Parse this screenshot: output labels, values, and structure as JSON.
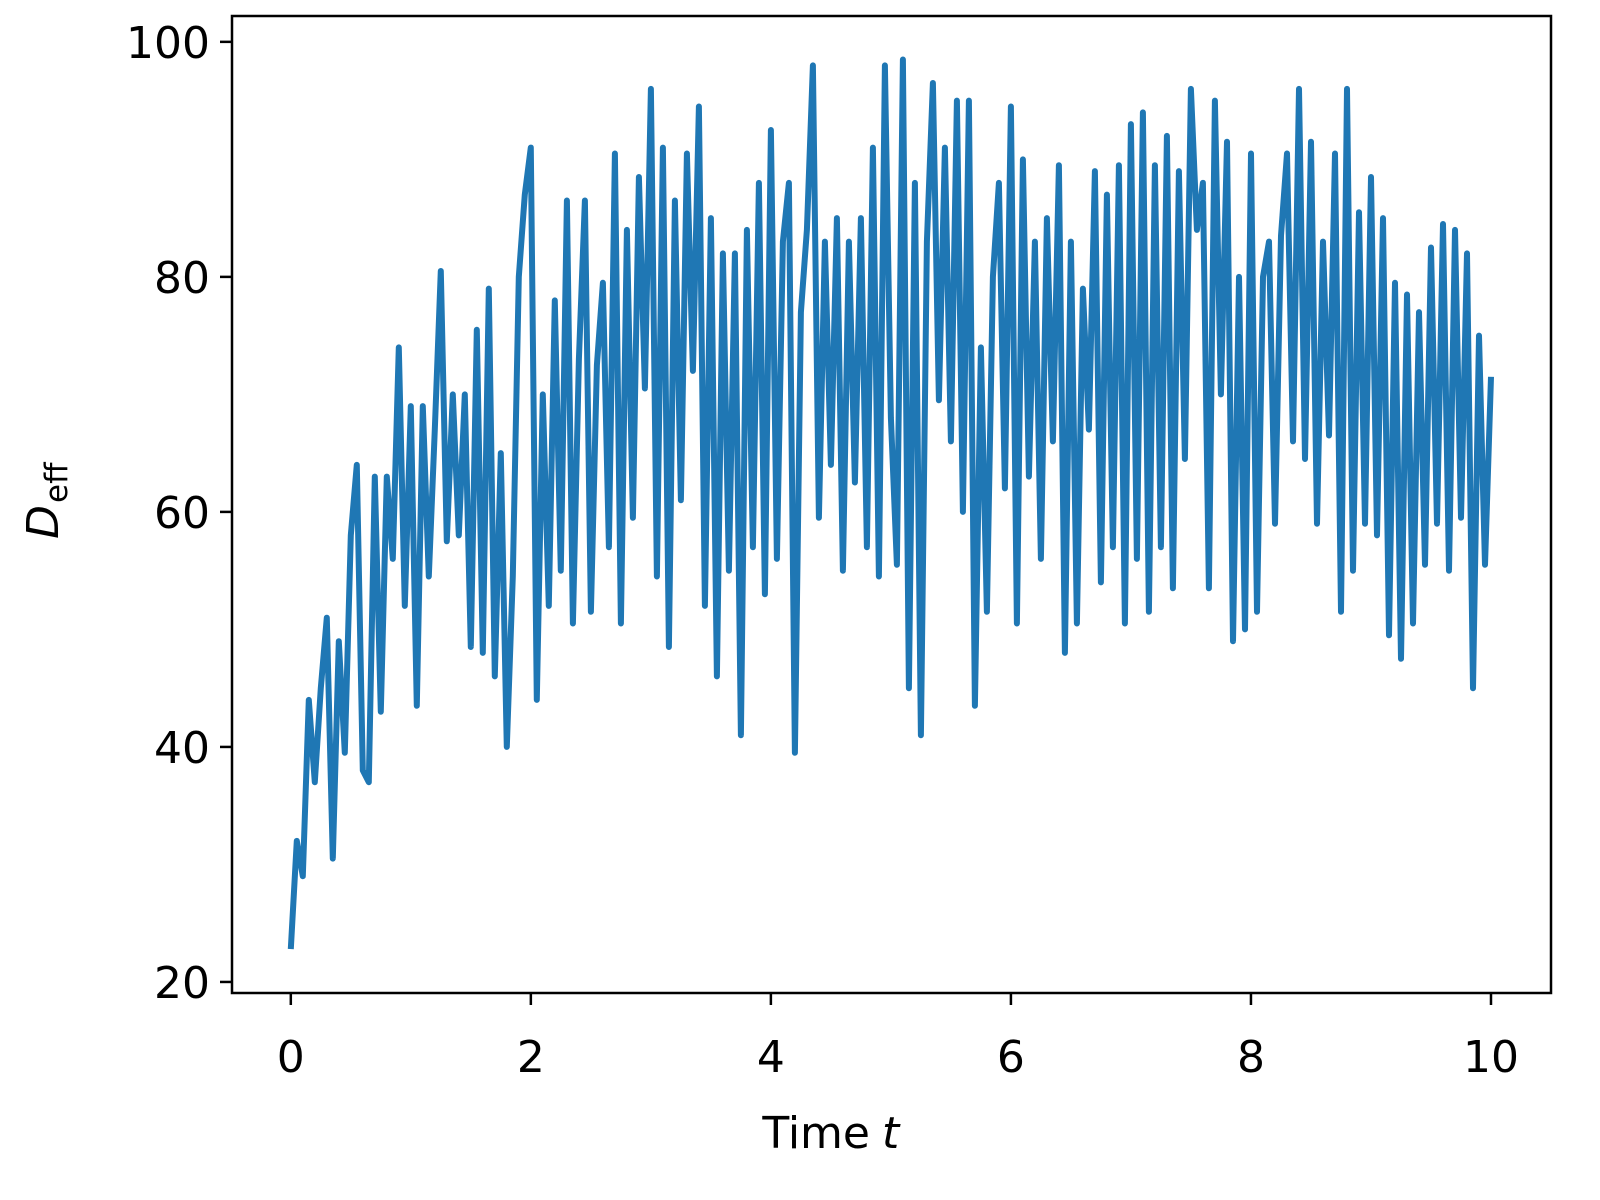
{
  "chart_data": {
    "type": "line",
    "xlabel": [
      "Time",
      "t"
    ],
    "ylabel": [
      "D",
      "eff"
    ],
    "x": [
      0,
      0.05,
      0.1,
      0.15,
      0.2,
      0.25,
      0.3,
      0.35,
      0.4,
      0.45,
      0.5,
      0.55,
      0.6,
      0.65,
      0.7,
      0.75,
      0.8,
      0.85,
      0.9,
      0.95,
      1,
      1.05,
      1.1,
      1.15,
      1.2,
      1.25,
      1.3,
      1.35,
      1.4,
      1.45,
      1.5,
      1.55,
      1.6,
      1.65,
      1.7,
      1.75,
      1.8,
      1.85,
      1.9,
      1.95,
      2,
      2.05,
      2.1,
      2.15,
      2.2,
      2.25,
      2.3,
      2.35,
      2.4,
      2.45,
      2.5,
      2.55,
      2.6,
      2.65,
      2.7,
      2.75,
      2.8,
      2.85,
      2.9,
      2.95,
      3,
      3.05,
      3.1,
      3.15,
      3.2,
      3.25,
      3.3,
      3.35,
      3.4,
      3.45,
      3.5,
      3.55,
      3.6,
      3.65,
      3.7,
      3.75,
      3.8,
      3.85,
      3.9,
      3.95,
      4,
      4.05,
      4.1,
      4.15,
      4.2,
      4.25,
      4.3,
      4.35,
      4.4,
      4.45,
      4.5,
      4.55,
      4.6,
      4.65,
      4.7,
      4.75,
      4.8,
      4.85,
      4.9,
      4.95,
      5,
      5.05,
      5.1,
      5.15,
      5.2,
      5.25,
      5.3,
      5.35,
      5.4,
      5.45,
      5.5,
      5.55,
      5.6,
      5.65,
      5.7,
      5.75,
      5.8,
      5.85,
      5.9,
      5.95,
      6,
      6.05,
      6.1,
      6.15,
      6.2,
      6.25,
      6.3,
      6.35,
      6.4,
      6.45,
      6.5,
      6.55,
      6.6,
      6.65,
      6.7,
      6.75,
      6.8,
      6.85,
      6.9,
      6.95,
      7,
      7.05,
      7.1,
      7.15,
      7.2,
      7.25,
      7.3,
      7.35,
      7.4,
      7.45,
      7.5,
      7.55,
      7.6,
      7.65,
      7.7,
      7.75,
      7.8,
      7.85,
      7.9,
      7.95,
      8,
      8.05,
      8.1,
      8.15,
      8.2,
      8.25,
      8.3,
      8.35,
      8.4,
      8.45,
      8.5,
      8.55,
      8.6,
      8.65,
      8.7,
      8.75,
      8.8,
      8.85,
      8.9,
      8.95,
      9,
      9.05,
      9.1,
      9.15,
      9.2,
      9.25,
      9.3,
      9.35,
      9.4,
      9.45,
      9.5,
      9.55,
      9.6,
      9.65,
      9.7,
      9.75,
      9.8,
      9.85,
      9.9,
      9.95,
      10
    ],
    "series": [
      {
        "color": "#1f77b4",
        "values": [
          22.8,
          32,
          29,
          44,
          37,
          45,
          51,
          30.5,
          49,
          39.5,
          58,
          64,
          38,
          37,
          63,
          43,
          63,
          56,
          74,
          52,
          69,
          43.5,
          69,
          54.5,
          67,
          80.5,
          57.5,
          70,
          58,
          70,
          48.5,
          75.5,
          48,
          79,
          46,
          65,
          40,
          54.5,
          80,
          87,
          91,
          44,
          70,
          52,
          78,
          55,
          86.5,
          50.5,
          73,
          86.5,
          51.5,
          72.5,
          79.5,
          57,
          90.5,
          50.5,
          84,
          59.5,
          88.5,
          70.5,
          96,
          54.5,
          91,
          48.5,
          86.5,
          61,
          90.5,
          72,
          94.5,
          52,
          85,
          46,
          82,
          55,
          82,
          41,
          84,
          57,
          88,
          53,
          92.5,
          56,
          83,
          88,
          39.5,
          77,
          84,
          98,
          59.5,
          83,
          64,
          85,
          55,
          83,
          62.5,
          85,
          57,
          91,
          54.5,
          98,
          68,
          55.5,
          98.5,
          45,
          88,
          41,
          83,
          96.5,
          69.5,
          91,
          66,
          95,
          60,
          95,
          43.5,
          74,
          51.5,
          80,
          88,
          62,
          94.5,
          50.5,
          90,
          63,
          83,
          56,
          85,
          66,
          89.5,
          48,
          83,
          50.5,
          79,
          67,
          89,
          54,
          87,
          57,
          89.5,
          50.5,
          93,
          56,
          94,
          51.5,
          89.5,
          57,
          92,
          53.5,
          89,
          64.5,
          96,
          84,
          88,
          53.5,
          95,
          70,
          91.5,
          49,
          80,
          50,
          90.5,
          51.5,
          80,
          83,
          59,
          83.5,
          90.5,
          66,
          96,
          64.5,
          91.5,
          59,
          83,
          66.5,
          90.5,
          51.5,
          96,
          55,
          85.5,
          59,
          88.5,
          58,
          85,
          49.5,
          79.5,
          47.5,
          78.5,
          50.5,
          77,
          55.5,
          82.5,
          59,
          84.5,
          55,
          84,
          59.5,
          82,
          45,
          75,
          55.5,
          71.5
        ]
      }
    ],
    "xlim": [
      -0.49,
      10.5
    ],
    "ylim": [
      19.06,
      102.2
    ],
    "xticks": [
      0,
      2,
      4,
      6,
      8,
      10
    ],
    "yticks": [
      20,
      40,
      60,
      80,
      100
    ]
  }
}
